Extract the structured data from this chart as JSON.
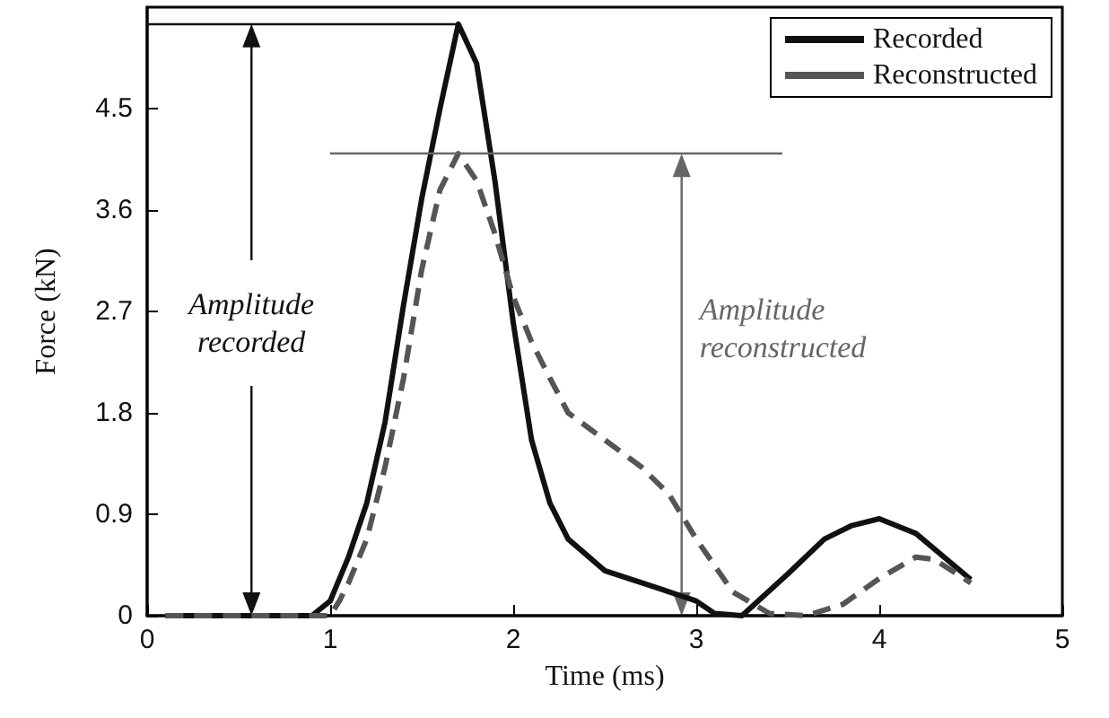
{
  "chart_data": {
    "type": "line",
    "xlabel": "Time (ms)",
    "ylabel": "Force (kN)",
    "xlim": [
      0,
      5
    ],
    "xticks": [
      0,
      1,
      2,
      3,
      4,
      5
    ],
    "ylim": [
      0,
      5.4
    ],
    "yticks": [
      0,
      0.9,
      1.8,
      2.7,
      3.6,
      4.5
    ],
    "grid": false,
    "legend": "top right",
    "marker": "none",
    "series": [
      {
        "name": "Recorded",
        "color": "#111111",
        "line_style": "solid",
        "x": [
          0.1,
          0.9,
          1.0,
          1.1,
          1.2,
          1.3,
          1.4,
          1.5,
          1.6,
          1.7,
          1.8,
          1.9,
          2.0,
          2.1,
          2.2,
          2.3,
          2.5,
          2.8,
          3.0,
          3.1,
          3.25,
          3.5,
          3.7,
          3.85,
          4.0,
          4.2,
          4.5
        ],
        "values": [
          0,
          0,
          0.13,
          0.52,
          1.0,
          1.72,
          2.75,
          3.7,
          4.5,
          5.25,
          4.9,
          3.86,
          2.6,
          1.56,
          1.0,
          0.68,
          0.4,
          0.24,
          0.13,
          0.02,
          0,
          0.37,
          0.68,
          0.8,
          0.86,
          0.73,
          0.32
        ]
      },
      {
        "name": "Reconstructed",
        "color": "#555555",
        "line_style": "dashed",
        "x": [
          0.1,
          1.0,
          1.05,
          1.1,
          1.2,
          1.3,
          1.4,
          1.5,
          1.6,
          1.7,
          1.8,
          1.9,
          2.0,
          2.1,
          2.2,
          2.3,
          2.5,
          2.7,
          2.85,
          3.0,
          3.2,
          3.4,
          3.6,
          3.8,
          4.0,
          4.2,
          4.3,
          4.5
        ],
        "values": [
          0,
          0,
          0.13,
          0.29,
          0.68,
          1.32,
          2.1,
          3.07,
          3.78,
          4.1,
          3.86,
          3.39,
          2.83,
          2.43,
          2.11,
          1.8,
          1.56,
          1.32,
          1.08,
          0.68,
          0.21,
          0.02,
          0,
          0.1,
          0.33,
          0.52,
          0.5,
          0.29
        ]
      }
    ],
    "ref_lines": [
      {
        "axis": "y",
        "value": 5.25,
        "color": "#111111"
      },
      {
        "axis": "y",
        "value": 4.1,
        "color": "#666666"
      }
    ],
    "annotations": [
      "Amplitude\nrecorded",
      "Amplitude\nreconstructed"
    ]
  }
}
